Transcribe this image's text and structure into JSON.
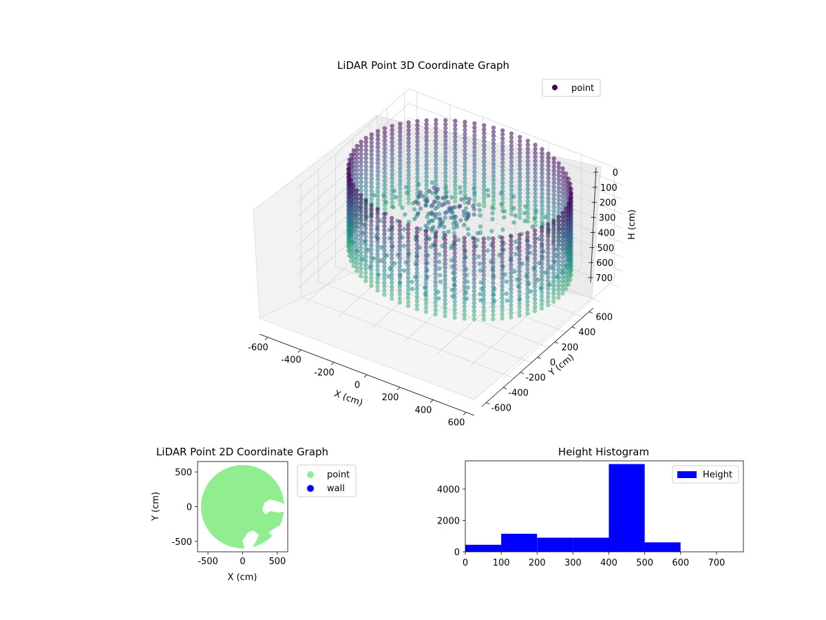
{
  "chart_data": [
    {
      "type": "scatter",
      "title": "LiDAR Point 3D Coordinate Graph",
      "xlabel": "X (cm)",
      "ylabel": "Y (cm)",
      "zlabel": "H (cm)",
      "xlim": [
        -650,
        650
      ],
      "ylim": [
        -650,
        650
      ],
      "zlim": [
        0,
        780
      ],
      "z_inverted": true,
      "x_ticks": [
        -600,
        -400,
        -200,
        0,
        200,
        400,
        600
      ],
      "y_ticks": [
        -600,
        -400,
        -200,
        0,
        200,
        400,
        600
      ],
      "z_ticks": [
        0,
        100,
        200,
        300,
        400,
        500,
        600,
        700
      ],
      "legend": {
        "placement": "top-right",
        "entries": [
          {
            "label": "point",
            "color": "#440154"
          }
        ]
      },
      "colormap": "viridis",
      "point_cloud": {
        "description": "cylindrical wall of points, radius about 600 cm, heights 0-700 cm, plus interior floor and scattered points",
        "wall_radius": 600,
        "height_range": [
          0,
          700
        ]
      }
    },
    {
      "type": "scatter",
      "title": "LiDAR Point 2D Coordinate Graph",
      "xlabel": "X (cm)",
      "ylabel": "Y (cm)",
      "xlim": [
        -650,
        650
      ],
      "ylim": [
        -650,
        650
      ],
      "x_ticks": [
        -500,
        0,
        500
      ],
      "y_ticks": [
        -500,
        0,
        500
      ],
      "legend": {
        "placement": "outside-right",
        "entries": [
          {
            "label": "point",
            "color": "#90ee90"
          },
          {
            "label": "wall",
            "color": "#0000ff"
          }
        ]
      },
      "colors": {
        "point": "#90ee90",
        "wall": "#0000ff"
      }
    },
    {
      "type": "bar",
      "title": "Height Histogram",
      "xlabel": "",
      "ylabel": "",
      "xlim": [
        0,
        775
      ],
      "ylim": [
        0,
        5800
      ],
      "x_ticks": [
        0,
        100,
        200,
        300,
        400,
        500,
        600,
        700
      ],
      "y_ticks": [
        0,
        2000,
        4000
      ],
      "bar_color": "#0000ff",
      "legend": {
        "placement": "top-right",
        "entries": [
          {
            "label": "Height",
            "color": "#0000ff"
          }
        ]
      },
      "bins": [
        {
          "x0": 0,
          "x1": 100,
          "value": 450
        },
        {
          "x0": 100,
          "x1": 200,
          "value": 1150
        },
        {
          "x0": 200,
          "x1": 300,
          "value": 900
        },
        {
          "x0": 300,
          "x1": 400,
          "value": 900
        },
        {
          "x0": 400,
          "x1": 500,
          "value": 5600
        },
        {
          "x0": 500,
          "x1": 600,
          "value": 600
        },
        {
          "x0": 600,
          "x1": 700,
          "value": 0
        },
        {
          "x0": 700,
          "x1": 775,
          "value": 0
        }
      ]
    }
  ]
}
